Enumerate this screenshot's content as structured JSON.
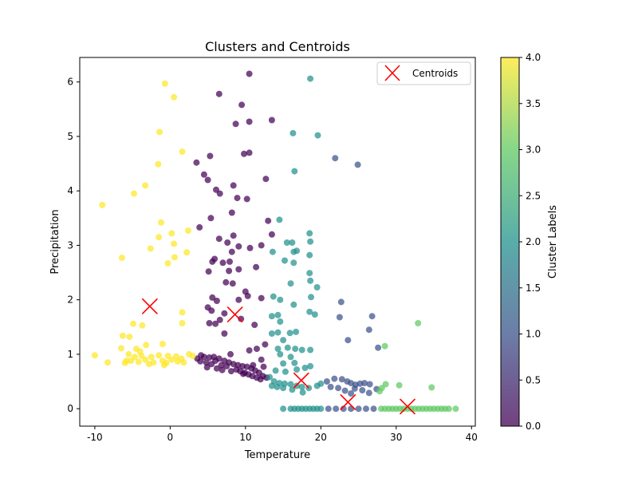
{
  "chart_data": {
    "type": "scatter",
    "title": "Clusters and Centroids",
    "xlabel": "Temperature",
    "ylabel": "Precipitation",
    "xlim": [
      -12,
      40.5
    ],
    "ylim": [
      -0.32,
      6.45
    ],
    "xticks": [
      -10,
      0,
      10,
      20,
      30,
      40
    ],
    "yticks": [
      0,
      1,
      2,
      3,
      4,
      5,
      6
    ],
    "grid": false,
    "legend": {
      "placement": "top-right",
      "entries": [
        "Centroids"
      ]
    },
    "colorbar": {
      "label": "Cluster Labels",
      "range": [
        0,
        4
      ],
      "ticks": [
        "0.0",
        "0.5",
        "1.0",
        "1.5",
        "2.0",
        "2.5",
        "3.0",
        "3.5",
        "4.0"
      ],
      "colors": [
        "#440154",
        "#3b528b",
        "#21918c",
        "#5ec962",
        "#fde725"
      ]
    },
    "centroids": {
      "name": "Centroids",
      "color": "#ff0000",
      "points": [
        [
          -2.7,
          1.88
        ],
        [
          8.6,
          1.73
        ],
        [
          17.4,
          0.52
        ],
        [
          23.6,
          0.12
        ],
        [
          31.5,
          0.04
        ]
      ]
    },
    "series": [
      {
        "cluster": 0,
        "color": "#440154",
        "points": [
          [
            10.5,
            6.15
          ],
          [
            6.5,
            5.78
          ],
          [
            9.5,
            5.58
          ],
          [
            13.5,
            5.3
          ],
          [
            10.5,
            5.27
          ],
          [
            8.7,
            5.23
          ],
          [
            9.8,
            4.68
          ],
          [
            10.5,
            4.7
          ],
          [
            3.5,
            4.52
          ],
          [
            5.3,
            4.64
          ],
          [
            4.5,
            4.3
          ],
          [
            5.0,
            4.2
          ],
          [
            12.7,
            4.22
          ],
          [
            8.4,
            4.1
          ],
          [
            6.1,
            4.02
          ],
          [
            6.6,
            3.95
          ],
          [
            10.2,
            3.85
          ],
          [
            8.9,
            3.87
          ],
          [
            8.2,
            3.6
          ],
          [
            5.4,
            3.5
          ],
          [
            3.9,
            3.33
          ],
          [
            6.5,
            3.12
          ],
          [
            8.4,
            3.18
          ],
          [
            7.6,
            3.05
          ],
          [
            9.1,
            2.98
          ],
          [
            12.1,
            3.0
          ],
          [
            10.6,
            2.95
          ],
          [
            13.0,
            3.45
          ],
          [
            13.5,
            3.2
          ],
          [
            8.2,
            2.88
          ],
          [
            5.9,
            2.75
          ],
          [
            7.0,
            2.68
          ],
          [
            7.9,
            2.7
          ],
          [
            5.6,
            2.7
          ],
          [
            5.1,
            2.52
          ],
          [
            7.8,
            2.53
          ],
          [
            9.1,
            2.56
          ],
          [
            11.4,
            2.6
          ],
          [
            7.4,
            2.32
          ],
          [
            8.3,
            2.3
          ],
          [
            10.0,
            2.15
          ],
          [
            10.3,
            2.07
          ],
          [
            6.2,
            1.98
          ],
          [
            5.6,
            2.04
          ],
          [
            9.1,
            2.0
          ],
          [
            12.1,
            2.03
          ],
          [
            5.0,
            1.86
          ],
          [
            7.2,
            1.75
          ],
          [
            5.5,
            1.8
          ],
          [
            9.4,
            1.65
          ],
          [
            5.2,
            1.57
          ],
          [
            6.0,
            1.56
          ],
          [
            6.6,
            1.63
          ],
          [
            11.2,
            1.54
          ],
          [
            12.6,
            1.18
          ],
          [
            7.2,
            1.38
          ],
          [
            11.5,
            1.1
          ],
          [
            10.5,
            1.07
          ],
          [
            8.0,
            1.0
          ],
          [
            4.1,
            0.98
          ],
          [
            4.5,
            0.95
          ],
          [
            5.2,
            0.94
          ],
          [
            5.8,
            0.95
          ],
          [
            6.5,
            0.92
          ],
          [
            7.2,
            0.88
          ],
          [
            7.8,
            0.85
          ],
          [
            8.4,
            0.82
          ],
          [
            9.0,
            0.8
          ],
          [
            9.6,
            0.78
          ],
          [
            10.2,
            0.77
          ],
          [
            10.8,
            0.74
          ],
          [
            11.3,
            0.7
          ],
          [
            11.8,
            0.66
          ],
          [
            12.3,
            0.6
          ],
          [
            12.8,
            0.57
          ],
          [
            4.8,
            0.85
          ],
          [
            5.5,
            0.82
          ],
          [
            6.0,
            0.88
          ],
          [
            6.8,
            0.8
          ],
          [
            7.5,
            0.78
          ],
          [
            8.8,
            0.72
          ],
          [
            9.3,
            0.69
          ],
          [
            9.9,
            0.66
          ],
          [
            10.4,
            0.63
          ],
          [
            10.9,
            0.6
          ],
          [
            11.5,
            0.57
          ],
          [
            12.0,
            0.54
          ],
          [
            3.6,
            0.92
          ],
          [
            4.0,
            0.87
          ],
          [
            6.2,
            0.74
          ],
          [
            8.1,
            0.69
          ],
          [
            11.0,
            0.8
          ],
          [
            12.4,
            0.77
          ],
          [
            12.1,
            0.9
          ],
          [
            4.9,
            0.76
          ],
          [
            6.9,
            0.71
          ],
          [
            9.7,
            0.64
          ]
        ]
      },
      {
        "cluster": 1,
        "color": "#3b528b",
        "points": [
          [
            21.9,
            4.6
          ],
          [
            24.9,
            4.48
          ],
          [
            22.7,
            1.96
          ],
          [
            22.5,
            1.68
          ],
          [
            26.8,
            1.7
          ],
          [
            26.4,
            1.45
          ],
          [
            23.6,
            1.26
          ],
          [
            27.6,
            1.12
          ],
          [
            20.8,
            0.5
          ],
          [
            21.8,
            0.55
          ],
          [
            22.8,
            0.54
          ],
          [
            23.5,
            0.5
          ],
          [
            24.0,
            0.47
          ],
          [
            24.6,
            0.44
          ],
          [
            25.2,
            0.46
          ],
          [
            25.8,
            0.47
          ],
          [
            26.5,
            0.45
          ],
          [
            27.4,
            0.36
          ],
          [
            21.3,
            0.4
          ],
          [
            22.3,
            0.38
          ],
          [
            24.5,
            0.37
          ],
          [
            25.5,
            0.34
          ],
          [
            24.0,
            0.28
          ],
          [
            23.2,
            0.33
          ],
          [
            26.4,
            0.29
          ],
          [
            21.0,
            0.0
          ],
          [
            22.0,
            0.0
          ],
          [
            23.0,
            0.0
          ],
          [
            24.0,
            0.0
          ],
          [
            25.0,
            0.0
          ],
          [
            26.0,
            0.0
          ],
          [
            27.0,
            0.0
          ]
        ]
      },
      {
        "cluster": 2,
        "color": "#21918c",
        "points": [
          [
            18.6,
            6.06
          ],
          [
            16.3,
            5.06
          ],
          [
            19.6,
            5.02
          ],
          [
            16.5,
            4.36
          ],
          [
            14.5,
            3.47
          ],
          [
            15.5,
            3.05
          ],
          [
            16.2,
            3.05
          ],
          [
            18.5,
            3.22
          ],
          [
            18.6,
            3.07
          ],
          [
            16.4,
            2.88
          ],
          [
            16.8,
            2.9
          ],
          [
            13.6,
            2.88
          ],
          [
            15.2,
            2.72
          ],
          [
            18.5,
            2.82
          ],
          [
            16.4,
            2.68
          ],
          [
            18.5,
            2.49
          ],
          [
            18.6,
            2.35
          ],
          [
            19.5,
            2.23
          ],
          [
            16.0,
            2.3
          ],
          [
            18.7,
            2.05
          ],
          [
            13.7,
            2.06
          ],
          [
            14.6,
            2.0
          ],
          [
            16.4,
            1.91
          ],
          [
            13.5,
            1.7
          ],
          [
            14.3,
            1.72
          ],
          [
            18.5,
            1.78
          ],
          [
            19.2,
            1.73
          ],
          [
            14.6,
            1.6
          ],
          [
            15.9,
            1.39
          ],
          [
            16.7,
            1.41
          ],
          [
            13.5,
            1.38
          ],
          [
            14.3,
            1.4
          ],
          [
            15.0,
            1.26
          ],
          [
            14.3,
            1.1
          ],
          [
            15.6,
            1.12
          ],
          [
            16.6,
            1.1
          ],
          [
            17.5,
            1.08
          ],
          [
            18.6,
            1.08
          ],
          [
            14.6,
            1.0
          ],
          [
            16.0,
            0.95
          ],
          [
            15.0,
            0.83
          ],
          [
            16.5,
            0.84
          ],
          [
            14.0,
            0.7
          ],
          [
            15.3,
            0.68
          ],
          [
            16.8,
            0.72
          ],
          [
            17.9,
            0.75
          ],
          [
            18.6,
            0.78
          ],
          [
            13.2,
            0.58
          ],
          [
            13.8,
            0.5
          ],
          [
            14.5,
            0.47
          ],
          [
            15.2,
            0.46
          ],
          [
            16.0,
            0.45
          ],
          [
            16.8,
            0.42
          ],
          [
            17.5,
            0.4
          ],
          [
            18.4,
            0.38
          ],
          [
            19.5,
            0.42
          ],
          [
            20.0,
            0.46
          ],
          [
            13.5,
            0.42
          ],
          [
            14.2,
            0.4
          ],
          [
            15.0,
            0.38
          ],
          [
            16.2,
            0.35
          ],
          [
            17.6,
            0.3
          ],
          [
            15.0,
            0.0
          ],
          [
            16.0,
            0.0
          ],
          [
            16.5,
            0.0
          ],
          [
            17.0,
            0.0
          ],
          [
            17.5,
            0.0
          ],
          [
            18.0,
            0.0
          ],
          [
            18.5,
            0.0
          ],
          [
            19.0,
            0.0
          ],
          [
            19.5,
            0.0
          ],
          [
            20.0,
            0.0
          ]
        ]
      },
      {
        "cluster": 3,
        "color": "#5ec962",
        "points": [
          [
            32.9,
            1.57
          ],
          [
            28.5,
            1.15
          ],
          [
            28.6,
            0.45
          ],
          [
            30.4,
            0.43
          ],
          [
            28.1,
            0.38
          ],
          [
            27.8,
            0.32
          ],
          [
            34.7,
            0.39
          ],
          [
            28.0,
            0.0
          ],
          [
            28.5,
            0.0
          ],
          [
            29.0,
            0.0
          ],
          [
            29.5,
            0.0
          ],
          [
            30.0,
            0.0
          ],
          [
            30.5,
            0.0
          ],
          [
            31.0,
            0.0
          ],
          [
            31.5,
            0.0
          ],
          [
            32.0,
            0.0
          ],
          [
            32.5,
            0.0
          ],
          [
            33.0,
            0.0
          ],
          [
            33.5,
            0.0
          ],
          [
            34.0,
            0.0
          ],
          [
            34.5,
            0.0
          ],
          [
            35.0,
            0.0
          ],
          [
            35.5,
            0.0
          ],
          [
            36.0,
            0.0
          ],
          [
            36.5,
            0.0
          ],
          [
            37.0,
            0.0
          ],
          [
            37.9,
            0.0
          ]
        ]
      },
      {
        "cluster": 4,
        "color": "#fde725",
        "points": [
          [
            -0.7,
            5.97
          ],
          [
            0.5,
            5.72
          ],
          [
            -1.4,
            5.08
          ],
          [
            1.6,
            4.72
          ],
          [
            -1.6,
            4.49
          ],
          [
            -3.3,
            4.1
          ],
          [
            -4.8,
            3.95
          ],
          [
            -9.0,
            3.74
          ],
          [
            -1.2,
            3.42
          ],
          [
            0.2,
            3.22
          ],
          [
            2.4,
            3.27
          ],
          [
            -1.5,
            3.15
          ],
          [
            0.5,
            3.03
          ],
          [
            -2.6,
            2.94
          ],
          [
            2.2,
            2.87
          ],
          [
            0.6,
            2.78
          ],
          [
            -6.4,
            2.77
          ],
          [
            -0.3,
            2.67
          ],
          [
            1.6,
            1.77
          ],
          [
            1.6,
            1.57
          ],
          [
            -3.7,
            1.53
          ],
          [
            -4.9,
            1.56
          ],
          [
            -5.4,
            1.32
          ],
          [
            -6.3,
            1.34
          ],
          [
            -3.2,
            1.17
          ],
          [
            -1.0,
            1.19
          ],
          [
            -6.5,
            1.11
          ],
          [
            -4.5,
            1.1
          ],
          [
            -4.0,
            1.05
          ],
          [
            -10.0,
            0.98
          ],
          [
            -5.5,
            1.0
          ],
          [
            -4.7,
            0.95
          ],
          [
            -3.8,
            0.97
          ],
          [
            -2.5,
            0.95
          ],
          [
            -1.5,
            0.98
          ],
          [
            -0.3,
            0.97
          ],
          [
            0.8,
            0.96
          ],
          [
            1.5,
            0.92
          ],
          [
            2.5,
            1.0
          ],
          [
            3.0,
            0.97
          ],
          [
            -8.3,
            0.85
          ],
          [
            -6.0,
            0.84
          ],
          [
            -5.2,
            0.88
          ],
          [
            -4.2,
            0.86
          ],
          [
            -3.3,
            0.9
          ],
          [
            -2.2,
            0.85
          ],
          [
            -1.0,
            0.88
          ],
          [
            -0.5,
            0.84
          ],
          [
            1.0,
            0.87
          ],
          [
            1.8,
            0.85
          ],
          [
            -5.8,
            0.88
          ],
          [
            -2.8,
            0.82
          ],
          [
            -0.8,
            0.8
          ],
          [
            0.2,
            0.9
          ]
        ]
      }
    ]
  }
}
